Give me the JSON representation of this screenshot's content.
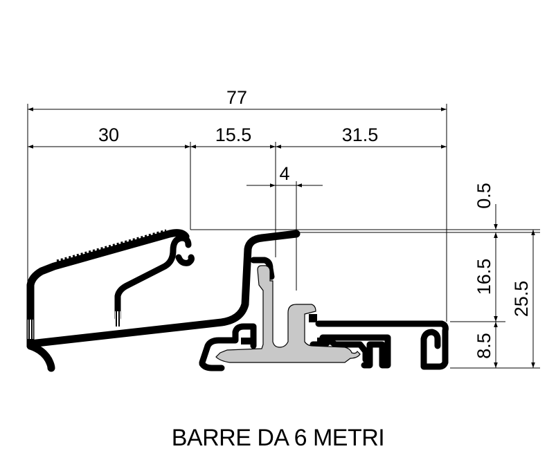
{
  "dimensions": {
    "overall_width": "77",
    "segment_left": "30",
    "segment_middle": "15.5",
    "segment_right": "31.5",
    "slot_width": "4",
    "top_offset": "0.5",
    "upper_height": "16.5",
    "lower_height": "8.5",
    "total_height": "25.5"
  },
  "caption": "BARRE DA 6 METRI",
  "colors": {
    "line": "#000000",
    "insert_fill": "#c8c8c8",
    "background": "#ffffff"
  }
}
